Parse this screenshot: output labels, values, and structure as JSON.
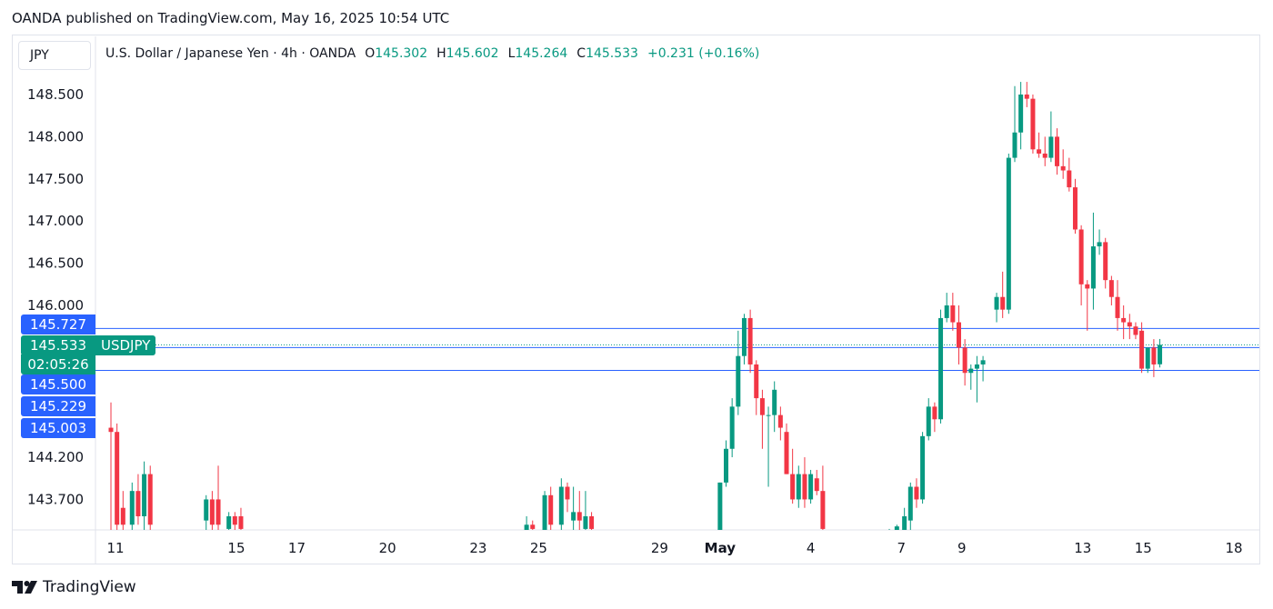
{
  "header": {
    "published": "OANDA published on TradingView.com, May 16, 2025 10:54 UTC"
  },
  "symbol_box": "JPY",
  "legend": {
    "title": "U.S. Dollar / Japanese Yen · 4h · OANDA",
    "o_label": "O",
    "o_value": "145.302",
    "h_label": "H",
    "h_value": "145.602",
    "l_label": "L",
    "l_value": "145.264",
    "c_label": "C",
    "c_value": "145.533",
    "change": "+0.231 (+0.16%)"
  },
  "price_tags": {
    "line1": "145.727",
    "current": "145.533",
    "countdown": "02:05:26",
    "symbol": "USDJPY",
    "line2": "145.500",
    "line3": "145.229",
    "line4": "145.003"
  },
  "footer": {
    "brand": "TradingView"
  },
  "colors": {
    "up": "#089981",
    "down": "#f23645",
    "level_line": "#2962ff",
    "accent": "#2962ff"
  },
  "chart_data": {
    "type": "candlestick",
    "title": "U.S. Dollar / Japanese Yen · 4h · OANDA",
    "ylim": [
      143.25,
      148.95
    ],
    "y_ticks": [
      "148.500",
      "148.000",
      "147.500",
      "147.000",
      "146.500",
      "146.000",
      "144.200",
      "143.700"
    ],
    "y_tick_values": [
      148.5,
      148.0,
      147.5,
      147.0,
      146.5,
      146.0,
      144.2,
      143.7
    ],
    "x_ticks": [
      {
        "label": "11",
        "day": 11
      },
      {
        "label": "15",
        "day": 15
      },
      {
        "label": "17",
        "day": 17
      },
      {
        "label": "20",
        "day": 20
      },
      {
        "label": "23",
        "day": 23
      },
      {
        "label": "25",
        "day": 25
      },
      {
        "label": "29",
        "day": 29
      },
      {
        "label": "May",
        "day": 31,
        "bold": true
      },
      {
        "label": "4",
        "day": 34
      },
      {
        "label": "7",
        "day": 37
      },
      {
        "label": "9",
        "day": 39
      },
      {
        "label": "13",
        "day": 43
      },
      {
        "label": "15",
        "day": 45
      },
      {
        "label": "18",
        "day": 48
      }
    ],
    "levels": [
      145.727,
      145.5,
      145.229
    ],
    "current": 145.533,
    "candles": [
      {
        "x": 10.85,
        "o": 144.55,
        "h": 144.85,
        "l": 143.3,
        "c": 144.5
      },
      {
        "x": 11.05,
        "o": 144.5,
        "h": 144.6,
        "l": 143.3,
        "c": 143.4
      },
      {
        "x": 11.25,
        "o": 143.6,
        "h": 143.8,
        "l": 143.3,
        "c": 143.4
      },
      {
        "x": 11.55,
        "o": 143.4,
        "h": 143.9,
        "l": 143.3,
        "c": 143.8
      },
      {
        "x": 11.75,
        "o": 143.8,
        "h": 144.0,
        "l": 143.4,
        "c": 143.5
      },
      {
        "x": 11.95,
        "o": 143.5,
        "h": 144.15,
        "l": 143.3,
        "c": 144.0
      },
      {
        "x": 12.15,
        "o": 144.0,
        "h": 144.1,
        "l": 143.3,
        "c": 143.4
      },
      {
        "x": 14.0,
        "o": 143.45,
        "h": 143.75,
        "l": 143.3,
        "c": 143.7
      },
      {
        "x": 14.2,
        "o": 143.7,
        "h": 143.8,
        "l": 143.3,
        "c": 143.4
      },
      {
        "x": 14.4,
        "o": 143.7,
        "h": 144.1,
        "l": 143.3,
        "c": 143.4
      },
      {
        "x": 14.75,
        "o": 143.35,
        "h": 143.55,
        "l": 143.3,
        "c": 143.5
      },
      {
        "x": 14.95,
        "o": 143.5,
        "h": 143.55,
        "l": 143.3,
        "c": 143.4
      },
      {
        "x": 15.15,
        "o": 143.5,
        "h": 143.6,
        "l": 143.3,
        "c": 143.35
      },
      {
        "x": 24.6,
        "o": 143.3,
        "h": 143.5,
        "l": 143.3,
        "c": 143.4
      },
      {
        "x": 24.8,
        "o": 143.4,
        "h": 143.45,
        "l": 143.3,
        "c": 143.35
      },
      {
        "x": 25.2,
        "o": 143.3,
        "h": 143.8,
        "l": 143.3,
        "c": 143.75
      },
      {
        "x": 25.4,
        "o": 143.75,
        "h": 143.85,
        "l": 143.3,
        "c": 143.4
      },
      {
        "x": 25.75,
        "o": 143.4,
        "h": 143.95,
        "l": 143.3,
        "c": 143.85
      },
      {
        "x": 25.95,
        "o": 143.85,
        "h": 143.9,
        "l": 143.55,
        "c": 143.7
      },
      {
        "x": 26.15,
        "o": 143.45,
        "h": 143.85,
        "l": 143.3,
        "c": 143.55
      },
      {
        "x": 26.35,
        "o": 143.55,
        "h": 143.8,
        "l": 143.3,
        "c": 143.45
      },
      {
        "x": 26.55,
        "o": 143.35,
        "h": 143.8,
        "l": 143.3,
        "c": 143.5
      },
      {
        "x": 26.75,
        "o": 143.5,
        "h": 143.55,
        "l": 143.3,
        "c": 143.35
      },
      {
        "x": 31.0,
        "o": 143.3,
        "h": 143.9,
        "l": 143.3,
        "c": 143.9
      },
      {
        "x": 31.2,
        "o": 143.9,
        "h": 144.4,
        "l": 143.85,
        "c": 144.3
      },
      {
        "x": 31.4,
        "o": 144.3,
        "h": 144.9,
        "l": 144.2,
        "c": 144.8
      },
      {
        "x": 31.6,
        "o": 144.8,
        "h": 145.7,
        "l": 144.7,
        "c": 145.4
      },
      {
        "x": 31.8,
        "o": 145.4,
        "h": 145.9,
        "l": 145.3,
        "c": 145.85
      },
      {
        "x": 32.0,
        "o": 145.85,
        "h": 145.95,
        "l": 145.2,
        "c": 145.3
      },
      {
        "x": 32.2,
        "o": 145.3,
        "h": 145.35,
        "l": 144.7,
        "c": 144.9
      },
      {
        "x": 32.4,
        "o": 144.9,
        "h": 145.0,
        "l": 144.3,
        "c": 144.7
      },
      {
        "x": 32.6,
        "o": 144.7,
        "h": 144.8,
        "l": 143.85,
        "c": 144.7
      },
      {
        "x": 32.8,
        "o": 144.7,
        "h": 145.1,
        "l": 144.5,
        "c": 145.0
      },
      {
        "x": 33.0,
        "o": 144.7,
        "h": 144.8,
        "l": 144.4,
        "c": 144.55
      },
      {
        "x": 33.2,
        "o": 144.5,
        "h": 144.6,
        "l": 144.0,
        "c": 144.0
      },
      {
        "x": 33.4,
        "o": 144.0,
        "h": 144.3,
        "l": 143.65,
        "c": 143.7
      },
      {
        "x": 33.6,
        "o": 143.7,
        "h": 144.1,
        "l": 143.6,
        "c": 144.0
      },
      {
        "x": 33.8,
        "o": 144.0,
        "h": 144.2,
        "l": 143.6,
        "c": 143.7
      },
      {
        "x": 34.0,
        "o": 143.7,
        "h": 144.05,
        "l": 143.65,
        "c": 144.0
      },
      {
        "x": 34.2,
        "o": 143.95,
        "h": 144.05,
        "l": 143.75,
        "c": 143.8
      },
      {
        "x": 34.4,
        "o": 143.8,
        "h": 144.1,
        "l": 143.3,
        "c": 143.35
      },
      {
        "x": 36.6,
        "o": 143.3,
        "h": 143.35,
        "l": 143.3,
        "c": 143.32
      },
      {
        "x": 36.85,
        "o": 143.32,
        "h": 143.4,
        "l": 143.3,
        "c": 143.38
      },
      {
        "x": 37.1,
        "o": 143.3,
        "h": 143.6,
        "l": 143.3,
        "c": 143.5
      },
      {
        "x": 37.3,
        "o": 143.45,
        "h": 143.9,
        "l": 143.3,
        "c": 143.85
      },
      {
        "x": 37.5,
        "o": 143.85,
        "h": 143.95,
        "l": 143.6,
        "c": 143.7
      },
      {
        "x": 37.7,
        "o": 143.7,
        "h": 144.5,
        "l": 143.65,
        "c": 144.45
      },
      {
        "x": 37.9,
        "o": 144.45,
        "h": 144.9,
        "l": 144.4,
        "c": 144.8
      },
      {
        "x": 38.1,
        "o": 144.8,
        "h": 144.85,
        "l": 144.5,
        "c": 144.65
      },
      {
        "x": 38.3,
        "o": 144.65,
        "h": 145.95,
        "l": 144.6,
        "c": 145.85
      },
      {
        "x": 38.5,
        "o": 145.85,
        "h": 146.15,
        "l": 145.8,
        "c": 146.0
      },
      {
        "x": 38.7,
        "o": 146.0,
        "h": 146.15,
        "l": 145.7,
        "c": 145.8
      },
      {
        "x": 38.9,
        "o": 145.8,
        "h": 146.0,
        "l": 145.3,
        "c": 145.5
      },
      {
        "x": 39.1,
        "o": 145.5,
        "h": 145.6,
        "l": 145.05,
        "c": 145.2
      },
      {
        "x": 39.3,
        "o": 145.2,
        "h": 145.3,
        "l": 145.0,
        "c": 145.25
      },
      {
        "x": 39.5,
        "o": 145.25,
        "h": 145.4,
        "l": 144.85,
        "c": 145.3
      },
      {
        "x": 39.7,
        "o": 145.3,
        "h": 145.4,
        "l": 145.1,
        "c": 145.35
      },
      {
        "x": 40.15,
        "o": 145.95,
        "h": 146.15,
        "l": 145.8,
        "c": 146.1
      },
      {
        "x": 40.35,
        "o": 146.1,
        "h": 146.4,
        "l": 145.85,
        "c": 145.95
      },
      {
        "x": 40.55,
        "o": 145.95,
        "h": 147.8,
        "l": 145.9,
        "c": 147.75
      },
      {
        "x": 40.75,
        "o": 147.75,
        "h": 148.6,
        "l": 147.7,
        "c": 148.05
      },
      {
        "x": 40.95,
        "o": 148.05,
        "h": 148.65,
        "l": 147.85,
        "c": 148.5
      },
      {
        "x": 41.15,
        "o": 148.5,
        "h": 148.65,
        "l": 148.35,
        "c": 148.45
      },
      {
        "x": 41.35,
        "o": 148.45,
        "h": 148.5,
        "l": 147.8,
        "c": 147.85
      },
      {
        "x": 41.55,
        "o": 147.85,
        "h": 148.05,
        "l": 147.75,
        "c": 147.8
      },
      {
        "x": 41.75,
        "o": 147.8,
        "h": 148.0,
        "l": 147.65,
        "c": 147.75
      },
      {
        "x": 41.95,
        "o": 147.75,
        "h": 148.3,
        "l": 147.7,
        "c": 148.0
      },
      {
        "x": 42.15,
        "o": 148.0,
        "h": 148.1,
        "l": 147.55,
        "c": 147.65
      },
      {
        "x": 42.35,
        "o": 147.65,
        "h": 147.85,
        "l": 147.5,
        "c": 147.6
      },
      {
        "x": 42.55,
        "o": 147.6,
        "h": 147.75,
        "l": 147.35,
        "c": 147.4
      },
      {
        "x": 42.75,
        "o": 147.4,
        "h": 147.5,
        "l": 146.85,
        "c": 146.9
      },
      {
        "x": 42.95,
        "o": 146.9,
        "h": 146.95,
        "l": 146.0,
        "c": 146.25
      },
      {
        "x": 43.15,
        "o": 146.25,
        "h": 146.3,
        "l": 145.7,
        "c": 146.2
      },
      {
        "x": 43.35,
        "o": 146.2,
        "h": 147.1,
        "l": 145.95,
        "c": 146.7
      },
      {
        "x": 43.55,
        "o": 146.7,
        "h": 146.9,
        "l": 146.6,
        "c": 146.75
      },
      {
        "x": 43.75,
        "o": 146.75,
        "h": 146.8,
        "l": 146.2,
        "c": 146.3
      },
      {
        "x": 43.95,
        "o": 146.3,
        "h": 146.35,
        "l": 146.0,
        "c": 146.1
      },
      {
        "x": 44.15,
        "o": 146.1,
        "h": 146.3,
        "l": 145.7,
        "c": 145.85
      },
      {
        "x": 44.35,
        "o": 145.85,
        "h": 146.0,
        "l": 145.6,
        "c": 145.8
      },
      {
        "x": 44.55,
        "o": 145.8,
        "h": 145.9,
        "l": 145.6,
        "c": 145.75
      },
      {
        "x": 44.75,
        "o": 145.75,
        "h": 145.8,
        "l": 145.6,
        "c": 145.65
      },
      {
        "x": 44.95,
        "o": 145.7,
        "h": 145.8,
        "l": 145.2,
        "c": 145.25
      },
      {
        "x": 45.15,
        "o": 145.25,
        "h": 145.5,
        "l": 145.2,
        "c": 145.5
      },
      {
        "x": 45.35,
        "o": 145.5,
        "h": 145.6,
        "l": 145.15,
        "c": 145.3
      },
      {
        "x": 45.55,
        "o": 145.302,
        "h": 145.602,
        "l": 145.264,
        "c": 145.533
      }
    ]
  }
}
